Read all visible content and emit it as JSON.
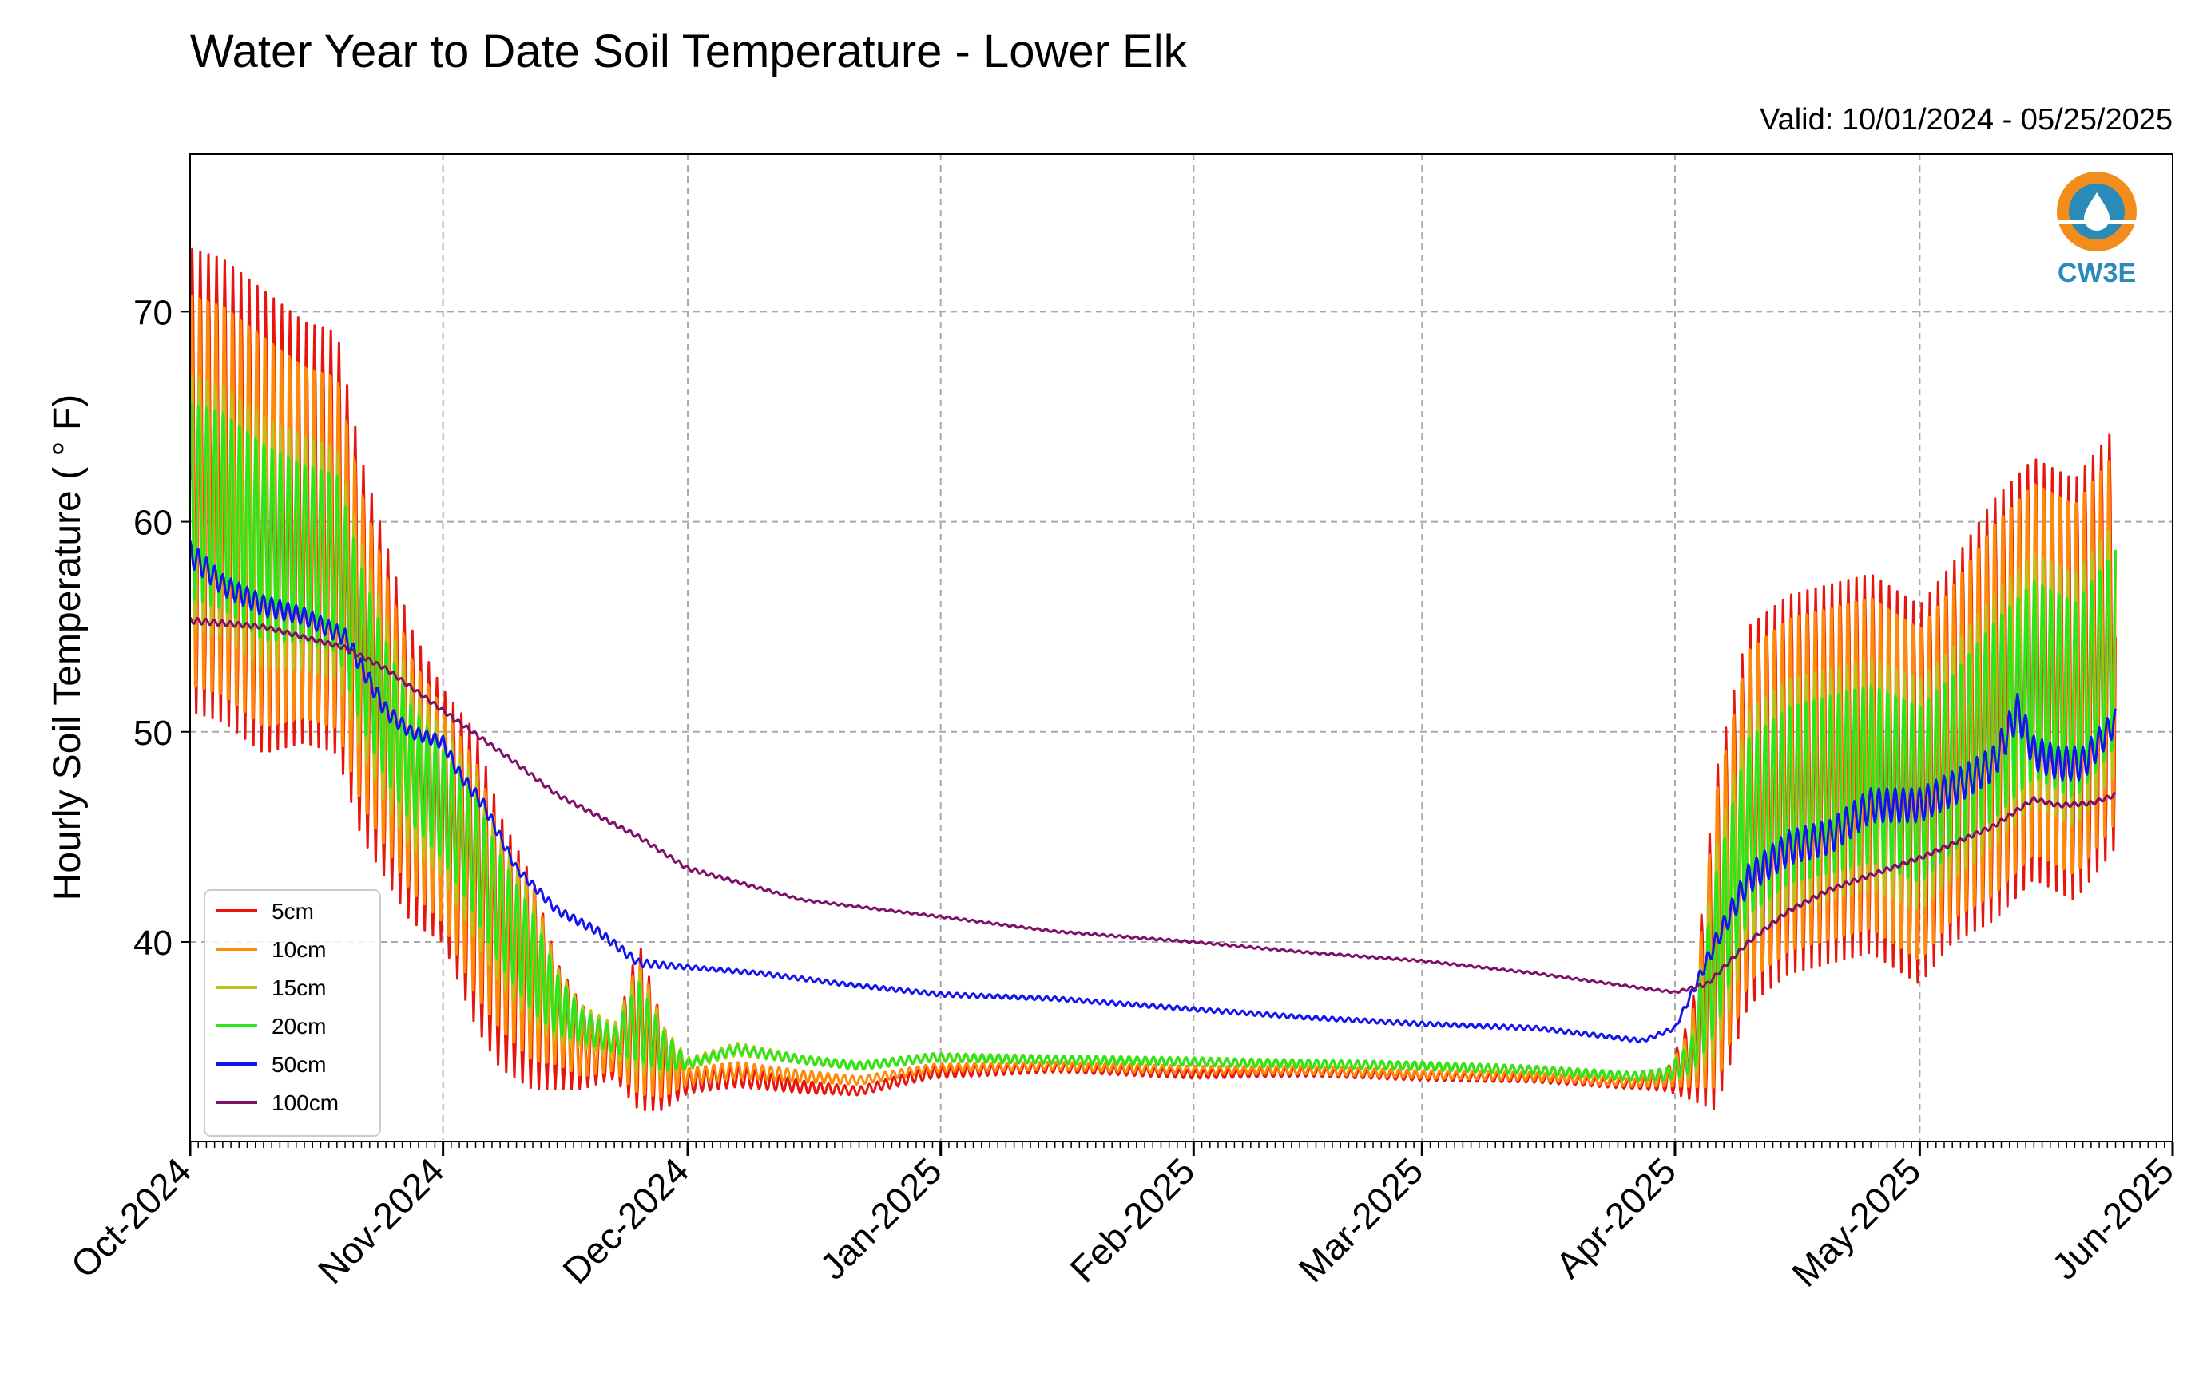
{
  "chart_data": {
    "type": "line",
    "title": "Water Year to Date Soil Temperature - Lower Elk",
    "subtitle": "Valid: 10/01/2024 - 05/25/2025",
    "xlabel": "",
    "ylabel": "Hourly Soil Temperature ( ° F)",
    "xlim": [
      "2024-10-01",
      "2025-06-01"
    ],
    "ylim": [
      30.5,
      77.5
    ],
    "yticks": [
      40,
      50,
      60,
      70
    ],
    "xticks": [
      "Oct-2024",
      "Nov-2024",
      "Dec-2024",
      "Jan-2025",
      "Feb-2025",
      "Mar-2025",
      "Apr-2025",
      "May-2025",
      "Jun-2025"
    ],
    "xtick_dates": [
      "2024-10-01",
      "2024-11-01",
      "2024-12-01",
      "2025-01-01",
      "2025-02-01",
      "2025-03-01",
      "2025-04-01",
      "2025-05-01",
      "2025-06-01"
    ],
    "grid": true,
    "legend_position": "lower-left",
    "logo": {
      "text": "CW3E",
      "color": "#2a8ab8",
      "accent": "#f28c1c"
    },
    "series": [
      {
        "name": "5cm",
        "color": "#e8150e",
        "dates": [
          "2024-10-01",
          "2024-10-05",
          "2024-10-10",
          "2024-10-15",
          "2024-10-19",
          "2024-10-22",
          "2024-10-25",
          "2024-10-28",
          "2024-11-01",
          "2024-11-05",
          "2024-11-08",
          "2024-11-12",
          "2024-11-15",
          "2024-11-18",
          "2024-11-22",
          "2024-11-25",
          "2024-11-28",
          "2024-12-01",
          "2024-12-07",
          "2024-12-15",
          "2024-12-22",
          "2024-12-31",
          "2025-01-15",
          "2025-02-01",
          "2025-02-15",
          "2025-03-01",
          "2025-03-15",
          "2025-03-27",
          "2025-03-31",
          "2025-04-03",
          "2025-04-06",
          "2025-04-10",
          "2025-04-15",
          "2025-04-20",
          "2025-04-25",
          "2025-05-01",
          "2025-05-05",
          "2025-05-10",
          "2025-05-15",
          "2025-05-20",
          "2025-05-25"
        ],
        "values": [
          62,
          61.5,
          60,
          59.5,
          59,
          54,
          51,
          48,
          46,
          43,
          40,
          38,
          36,
          35,
          34.5,
          36,
          34,
          33.3,
          33.6,
          33.1,
          32.9,
          33.8,
          34,
          33.7,
          33.8,
          33.6,
          33.5,
          33.2,
          33.4,
          34.5,
          40,
          46,
          47.5,
          48,
          48.5,
          47,
          49,
          51,
          53,
          52,
          54.5
        ],
        "amplitudes": [
          11,
          11,
          11,
          10,
          10,
          9,
          8,
          7,
          6,
          7,
          6,
          5,
          3,
          2,
          1,
          4,
          2,
          0.5,
          0.5,
          0.3,
          0.2,
          0.3,
          0.2,
          0.2,
          0.2,
          0.2,
          0.2,
          0.2,
          0.5,
          2,
          8,
          9,
          9,
          9,
          9,
          9,
          9,
          10,
          10,
          10,
          10
        ]
      },
      {
        "name": "10cm",
        "color": "#ff8a0a",
        "dates": [
          "2024-10-01",
          "2024-10-05",
          "2024-10-10",
          "2024-10-15",
          "2024-10-19",
          "2024-10-22",
          "2024-10-25",
          "2024-10-28",
          "2024-11-01",
          "2024-11-05",
          "2024-11-08",
          "2024-11-12",
          "2024-11-15",
          "2024-11-18",
          "2024-11-22",
          "2024-11-25",
          "2024-11-28",
          "2024-12-01",
          "2024-12-07",
          "2024-12-15",
          "2024-12-22",
          "2024-12-31",
          "2025-01-15",
          "2025-02-01",
          "2025-02-15",
          "2025-03-01",
          "2025-03-15",
          "2025-03-27",
          "2025-03-31",
          "2025-04-03",
          "2025-04-06",
          "2025-04-10",
          "2025-04-15",
          "2025-04-20",
          "2025-04-25",
          "2025-05-01",
          "2025-05-05",
          "2025-05-10",
          "2025-05-15",
          "2025-05-20",
          "2025-05-25"
        ],
        "values": [
          61.5,
          61,
          59.5,
          59,
          58.5,
          54,
          51,
          48,
          46,
          43,
          40.5,
          38.5,
          36.5,
          35,
          34.8,
          36,
          34.3,
          33.6,
          33.9,
          33.6,
          33.4,
          34,
          34.1,
          33.9,
          33.9,
          33.7,
          33.6,
          33.3,
          33.5,
          34.5,
          40,
          46,
          47.5,
          48,
          48.5,
          47,
          49,
          51,
          53,
          52,
          54.5
        ],
        "amplitudes": [
          10,
          10,
          10,
          9,
          9,
          8,
          7,
          6,
          5.5,
          6,
          5,
          4.5,
          2.5,
          1.5,
          1,
          3.5,
          1.8,
          0.4,
          0.4,
          0.3,
          0.2,
          0.2,
          0.2,
          0.2,
          0.2,
          0.2,
          0.2,
          0.2,
          0.4,
          1.5,
          7.5,
          8.5,
          8.5,
          8.5,
          8.5,
          8.5,
          8.5,
          9.5,
          9.5,
          9.5,
          9.5
        ]
      },
      {
        "name": "15cm",
        "color": "#b8c41a",
        "dates": [
          "2024-10-01",
          "2024-10-05",
          "2024-10-10",
          "2024-10-15",
          "2024-10-19",
          "2024-10-22",
          "2024-10-25",
          "2024-10-28",
          "2024-11-01",
          "2024-11-05",
          "2024-11-08",
          "2024-11-12",
          "2024-11-15",
          "2024-11-18",
          "2024-11-22",
          "2024-11-25",
          "2024-11-28",
          "2024-12-01",
          "2024-12-07",
          "2024-12-15",
          "2024-12-22",
          "2024-12-31",
          "2025-01-15",
          "2025-02-01",
          "2025-02-15",
          "2025-03-01",
          "2025-03-15",
          "2025-03-27",
          "2025-03-31",
          "2025-04-03",
          "2025-04-06",
          "2025-04-10",
          "2025-04-15",
          "2025-04-20",
          "2025-04-25",
          "2025-05-01",
          "2025-05-05",
          "2025-05-10",
          "2025-05-15",
          "2025-05-20",
          "2025-05-25"
        ],
        "values": [
          61,
          60.5,
          59,
          58.5,
          58,
          54,
          51,
          48.5,
          46.5,
          44,
          41.5,
          39,
          37,
          36,
          35.3,
          36.2,
          34.8,
          34.2,
          34.9,
          34.4,
          34.1,
          34.5,
          34.4,
          34.3,
          34.2,
          34.1,
          33.9,
          33.6,
          33.7,
          34.5,
          39.5,
          45.5,
          47,
          47.5,
          48,
          47,
          48.5,
          50.5,
          52.5,
          51.5,
          54
        ],
        "amplitudes": [
          6,
          6,
          6,
          5.5,
          5.5,
          5,
          4.5,
          4,
          3.5,
          4,
          3.5,
          3,
          1.8,
          1,
          0.8,
          2.5,
          1.2,
          0.3,
          0.3,
          0.2,
          0.2,
          0.2,
          0.2,
          0.2,
          0.2,
          0.2,
          0.2,
          0.2,
          0.3,
          1,
          5,
          5.5,
          5.5,
          5.5,
          5.5,
          5.5,
          5.5,
          6,
          6,
          6,
          6
        ]
      },
      {
        "name": "20cm",
        "color": "#2ce61c",
        "dates": [
          "2024-10-01",
          "2024-10-05",
          "2024-10-10",
          "2024-10-15",
          "2024-10-19",
          "2024-10-22",
          "2024-10-25",
          "2024-10-28",
          "2024-11-01",
          "2024-11-05",
          "2024-11-08",
          "2024-11-12",
          "2024-11-15",
          "2024-11-18",
          "2024-11-22",
          "2024-11-25",
          "2024-11-28",
          "2024-12-01",
          "2024-12-07",
          "2024-12-15",
          "2024-12-22",
          "2024-12-31",
          "2025-01-15",
          "2025-02-01",
          "2025-02-15",
          "2025-03-01",
          "2025-03-15",
          "2025-03-27",
          "2025-03-31",
          "2025-04-03",
          "2025-04-06",
          "2025-04-10",
          "2025-04-15",
          "2025-04-20",
          "2025-04-25",
          "2025-05-01",
          "2025-05-05",
          "2025-05-10",
          "2025-05-15",
          "2025-05-20",
          "2025-05-25"
        ],
        "values": [
          61,
          60.5,
          59,
          58.5,
          58,
          54,
          51,
          48.5,
          46.5,
          44,
          41.5,
          39,
          37,
          36,
          35.3,
          36.2,
          34.8,
          34.2,
          34.9,
          34.4,
          34.1,
          34.5,
          34.4,
          34.3,
          34.2,
          34.1,
          33.9,
          33.6,
          33.7,
          34.5,
          39.5,
          45.5,
          47,
          47.5,
          48,
          47,
          48.5,
          50.5,
          52.5,
          51.5,
          54
        ],
        "amplitudes": [
          5,
          5,
          5,
          4.5,
          4.5,
          4,
          3.5,
          3,
          2.8,
          3,
          2.8,
          2.5,
          1.5,
          0.8,
          0.6,
          2,
          1,
          0.2,
          0.2,
          0.2,
          0.2,
          0.2,
          0.2,
          0.2,
          0.2,
          0.2,
          0.2,
          0.2,
          0.3,
          0.8,
          4,
          4.5,
          4.5,
          4.5,
          4.5,
          4.5,
          4.5,
          5,
          5,
          5,
          5
        ]
      },
      {
        "name": "50cm",
        "color": "#1414ee",
        "dates": [
          "2024-10-01",
          "2024-10-05",
          "2024-10-10",
          "2024-10-15",
          "2024-10-20",
          "2024-10-25",
          "2024-10-28",
          "2024-11-01",
          "2024-11-03",
          "2024-11-06",
          "2024-11-10",
          "2024-11-15",
          "2024-11-20",
          "2024-11-25",
          "2024-12-01",
          "2024-12-10",
          "2024-12-20",
          "2025-01-01",
          "2025-01-15",
          "2025-02-01",
          "2025-02-15",
          "2025-03-01",
          "2025-03-15",
          "2025-03-28",
          "2025-04-01",
          "2025-04-03",
          "2025-04-06",
          "2025-04-10",
          "2025-04-15",
          "2025-04-20",
          "2025-04-25",
          "2025-05-01",
          "2025-05-06",
          "2025-05-10",
          "2025-05-13",
          "2025-05-15",
          "2025-05-18",
          "2025-05-21",
          "2025-05-25"
        ],
        "values": [
          58.5,
          57,
          56,
          55.5,
          54.5,
          51,
          50,
          49.5,
          48,
          46.5,
          43.5,
          41.5,
          40.5,
          39,
          38.8,
          38.5,
          38,
          37.5,
          37.3,
          36.8,
          36.4,
          36.1,
          35.9,
          35.3,
          35.9,
          37.5,
          40,
          43,
          44.5,
          45,
          46.5,
          46.5,
          47.5,
          48.5,
          51,
          49,
          48.5,
          48.5,
          50.5
        ],
        "amplitudes": [
          0.6,
          0.5,
          0.5,
          0.4,
          0.4,
          0.4,
          0.3,
          0.3,
          0.3,
          0.3,
          0.2,
          0.2,
          0.2,
          0.2,
          0.1,
          0.1,
          0.1,
          0.1,
          0.1,
          0.1,
          0.1,
          0.1,
          0.1,
          0.1,
          0.1,
          0.2,
          0.4,
          0.7,
          0.8,
          0.8,
          0.8,
          0.8,
          0.8,
          0.8,
          0.8,
          0.8,
          0.8,
          0.8,
          0.6
        ]
      },
      {
        "name": "100cm",
        "color": "#7d1068",
        "dates": [
          "2024-10-01",
          "2024-10-10",
          "2024-10-15",
          "2024-10-20",
          "2024-10-25",
          "2024-11-01",
          "2024-11-10",
          "2024-11-15",
          "2024-11-25",
          "2024-12-01",
          "2024-12-15",
          "2025-01-01",
          "2025-01-15",
          "2025-02-01",
          "2025-02-15",
          "2025-03-01",
          "2025-03-15",
          "2025-03-28",
          "2025-04-01",
          "2025-04-05",
          "2025-04-10",
          "2025-04-15",
          "2025-04-20",
          "2025-05-01",
          "2025-05-10",
          "2025-05-15",
          "2025-05-18",
          "2025-05-22",
          "2025-05-25"
        ],
        "values": [
          55.3,
          55,
          54.5,
          54,
          53,
          51,
          48.5,
          47,
          45,
          43.5,
          42,
          41.2,
          40.5,
          40,
          39.5,
          39.1,
          38.5,
          37.8,
          37.6,
          38,
          40,
          41.5,
          42.5,
          44,
          45.5,
          46.8,
          46.5,
          46.6,
          47
        ],
        "amplitudes": [
          0.15,
          0.1,
          0.1,
          0.1,
          0.1,
          0.1,
          0.1,
          0.1,
          0.1,
          0.1,
          0.05,
          0.05,
          0.05,
          0.05,
          0.05,
          0.05,
          0.05,
          0.05,
          0.05,
          0.1,
          0.1,
          0.1,
          0.1,
          0.1,
          0.1,
          0.1,
          0.1,
          0.1,
          0.1
        ]
      }
    ]
  }
}
